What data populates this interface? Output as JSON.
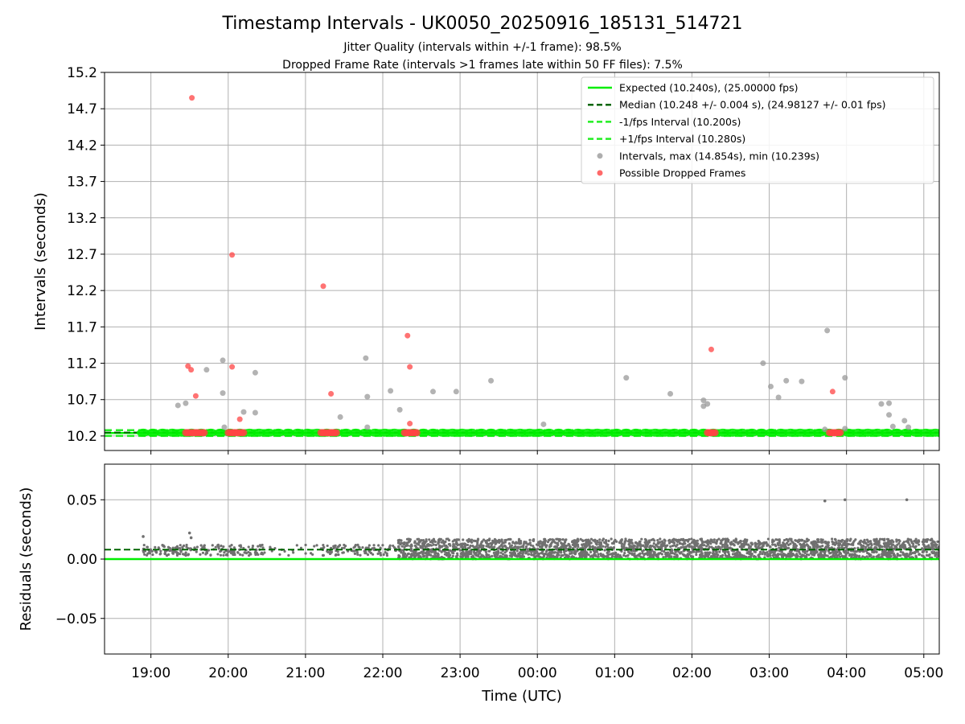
{
  "chart_data": {
    "type": "scatter",
    "title": "Timestamp Intervals - UK0050_20250916_185131_514721",
    "subtitle_lines": [
      "Jitter Quality (intervals within +/-1 frame): 98.5%",
      "Dropped Frame Rate (intervals >1 frames late within 50 FF files): 7.5%"
    ],
    "xlabel": "Time (UTC)",
    "xlim_hours": [
      18.4,
      29.2
    ],
    "x_ticks": [
      {
        "value": 19,
        "label": "19:00"
      },
      {
        "value": 20,
        "label": "20:00"
      },
      {
        "value": 21,
        "label": "21:00"
      },
      {
        "value": 22,
        "label": "22:00"
      },
      {
        "value": 23,
        "label": "23:00"
      },
      {
        "value": 24,
        "label": "00:00"
      },
      {
        "value": 25,
        "label": "01:00"
      },
      {
        "value": 26,
        "label": "02:00"
      },
      {
        "value": 27,
        "label": "03:00"
      },
      {
        "value": 28,
        "label": "04:00"
      },
      {
        "value": 29,
        "label": "05:00"
      }
    ],
    "grid": true,
    "legend_position": "top-right",
    "colors": {
      "expected": "#00ee00",
      "median": "#006400",
      "fps_interval": "#22ee22",
      "intervals": "#9a9a9a",
      "dropped": "#ff4444",
      "residuals": "#707070",
      "grid": "#b0b0b0"
    },
    "top": {
      "ylabel": "Intervals (seconds)",
      "ylim": [
        10.0,
        15.2
      ],
      "y_ticks": [
        10.2,
        10.7,
        11.2,
        11.7,
        12.2,
        12.7,
        13.2,
        13.7,
        14.2,
        14.7,
        15.2
      ],
      "expected": 10.24,
      "median": 10.248,
      "minus_fps": 10.2,
      "plus_fps": 10.28,
      "legend": [
        {
          "label": "Expected (10.240s), (25.00000 fps)",
          "style": "solid-line",
          "color": "#00ee00"
        },
        {
          "label": "Median (10.248 +/- 0.004 s), (24.98127 +/- 0.01 fps)",
          "style": "dashed-line",
          "color": "#006400"
        },
        {
          "label": "-1/fps Interval (10.200s)",
          "style": "dashed-line",
          "color": "#22ee22"
        },
        {
          "label": "+1/fps Interval (10.280s)",
          "style": "dashed-line",
          "color": "#22ee22"
        },
        {
          "label": "Intervals, max (14.854s), min (10.239s)",
          "style": "dot",
          "color": "#9a9a9a"
        },
        {
          "label": "Possible Dropped Frames",
          "style": "dot",
          "color": "#ff4444"
        }
      ],
      "normal_outliers": [
        [
          19.35,
          10.62
        ],
        [
          19.45,
          10.65
        ],
        [
          19.72,
          11.11
        ],
        [
          19.93,
          11.24
        ],
        [
          19.93,
          10.79
        ],
        [
          19.95,
          10.32
        ],
        [
          20.2,
          10.53
        ],
        [
          20.35,
          11.07
        ],
        [
          20.35,
          10.52
        ],
        [
          21.45,
          10.46
        ],
        [
          21.78,
          11.27
        ],
        [
          21.8,
          10.74
        ],
        [
          21.8,
          10.32
        ],
        [
          22.1,
          10.82
        ],
        [
          22.22,
          10.56
        ],
        [
          22.65,
          10.81
        ],
        [
          22.95,
          10.81
        ],
        [
          23.4,
          10.96
        ],
        [
          24.08,
          10.36
        ],
        [
          25.15,
          11.0
        ],
        [
          25.72,
          10.78
        ],
        [
          26.15,
          10.69
        ],
        [
          26.15,
          10.61
        ],
        [
          26.2,
          10.64
        ],
        [
          26.92,
          11.2
        ],
        [
          27.02,
          10.88
        ],
        [
          27.12,
          10.73
        ],
        [
          27.22,
          10.96
        ],
        [
          27.42,
          10.95
        ],
        [
          27.75,
          11.65
        ],
        [
          27.72,
          10.29
        ],
        [
          27.98,
          11.0
        ],
        [
          27.98,
          10.3
        ],
        [
          28.45,
          10.64
        ],
        [
          28.55,
          10.65
        ],
        [
          28.55,
          10.49
        ],
        [
          28.6,
          10.33
        ],
        [
          28.75,
          10.41
        ],
        [
          28.8,
          10.32
        ]
      ],
      "dropped": [
        [
          19.53,
          14.85
        ],
        [
          19.48,
          11.16
        ],
        [
          19.52,
          11.11
        ],
        [
          19.58,
          10.75
        ],
        [
          20.05,
          12.69
        ],
        [
          20.05,
          11.15
        ],
        [
          20.15,
          10.43
        ],
        [
          21.23,
          12.26
        ],
        [
          21.33,
          10.78
        ],
        [
          22.32,
          11.58
        ],
        [
          22.35,
          11.15
        ],
        [
          22.35,
          10.37
        ],
        [
          26.25,
          11.39
        ],
        [
          27.82,
          10.81
        ]
      ],
      "dropped_clusters": [
        [
          19.45,
          19.7
        ],
        [
          20.0,
          20.2
        ],
        [
          21.2,
          21.4
        ],
        [
          22.28,
          22.45
        ],
        [
          26.2,
          26.3
        ],
        [
          27.78,
          27.92
        ]
      ],
      "baseline_interval_s": 0.125,
      "baseline_value": 10.245
    },
    "bottom": {
      "ylabel": "Residuals (seconds)",
      "ylim": [
        -0.08,
        0.08
      ],
      "y_ticks": [
        {
          "value": 0.05,
          "label": "0.05"
        },
        {
          "value": 0.0,
          "label": "0.00"
        },
        {
          "value": -0.05,
          "label": "−0.05"
        }
      ],
      "expected": 0.0,
      "median": 0.008,
      "outliers": [
        [
          18.9,
          0.019
        ],
        [
          19.5,
          0.022
        ],
        [
          19.52,
          0.018
        ],
        [
          27.72,
          0.049
        ],
        [
          27.98,
          0.05
        ],
        [
          28.78,
          0.05
        ]
      ],
      "early_band": [
        18.9,
        22.2,
        0.003,
        0.012
      ],
      "late_band": [
        22.2,
        29.2,
        0.0,
        0.017
      ]
    }
  }
}
